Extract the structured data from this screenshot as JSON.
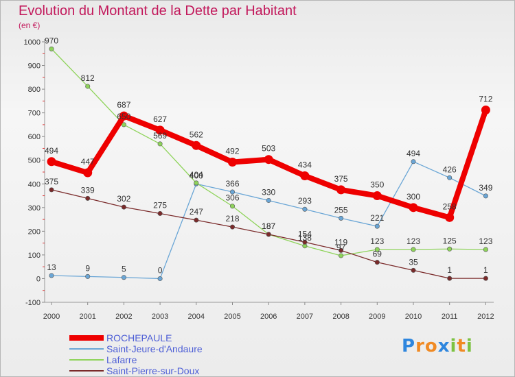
{
  "title": "Evolution du Montant de la Dette par Habitant",
  "subtitle": "(en €)",
  "logo": {
    "text": "Proxiti",
    "letters": [
      {
        "ch": "P",
        "color": "#2e86de"
      },
      {
        "ch": "r",
        "color": "#f08a24"
      },
      {
        "ch": "o",
        "color": "#f08a24"
      },
      {
        "ch": "x",
        "color": "#2e86de"
      },
      {
        "ch": "i",
        "color": "#7cc242"
      },
      {
        "ch": "t",
        "color": "#f08a24"
      },
      {
        "ch": "i",
        "color": "#7cc242"
      }
    ]
  },
  "chart_data": {
    "type": "line",
    "title": "Evolution du Montant de la Dette par Habitant",
    "subtitle": "(en €)",
    "x": [
      "2000",
      "2001",
      "2002",
      "2003",
      "2004",
      "2005",
      "2006",
      "2007",
      "2008",
      "2009",
      "2010",
      "2011",
      "2012"
    ],
    "ylim": [
      -100,
      1000
    ],
    "yticks": [
      -100,
      0,
      100,
      200,
      300,
      400,
      500,
      600,
      700,
      800,
      900,
      1000
    ],
    "grid": false,
    "legend_position": "bottom-left",
    "series": [
      {
        "name": "ROCHEPAULE",
        "color": "#ee0000",
        "width": "thick",
        "values": [
          494,
          447,
          687,
          627,
          562,
          492,
          503,
          434,
          375,
          350,
          300,
          258,
          712
        ],
        "labels": [
          "494",
          "447",
          "687",
          "627",
          "562",
          "492",
          "503",
          "434",
          "375",
          "350",
          "300",
          "258",
          "712"
        ]
      },
      {
        "name": "Saint-Jeure-d'Andaure",
        "color": "#6aa6d6",
        "width": "thin",
        "values": [
          13,
          9,
          5,
          0,
          400,
          366,
          330,
          293,
          255,
          221,
          494,
          426,
          349
        ],
        "labels": [
          "13",
          "9",
          "5",
          "0",
          "400",
          "366",
          "330",
          "293",
          "255",
          "221",
          "494",
          "426",
          "349"
        ]
      },
      {
        "name": "Lafarre",
        "color": "#8ed35a",
        "width": "thin",
        "values": [
          970,
          812,
          650,
          569,
          404,
          306,
          187,
          138,
          97,
          123,
          123,
          125,
          123
        ],
        "labels": [
          "970",
          "812",
          "650",
          "569",
          "404",
          "306",
          "187",
          "138",
          "97",
          "123",
          "123",
          "125",
          "123"
        ]
      },
      {
        "name": "Saint-Pierre-sur-Doux",
        "color": "#7a2a2a",
        "width": "thin",
        "values": [
          375,
          339,
          302,
          275,
          247,
          218,
          187,
          154,
          119,
          69,
          35,
          1,
          1
        ],
        "labels": [
          "375",
          "339",
          "302",
          "275",
          "247",
          "218",
          "187",
          "154",
          "119",
          "69",
          "35",
          "1",
          "1"
        ]
      }
    ]
  }
}
